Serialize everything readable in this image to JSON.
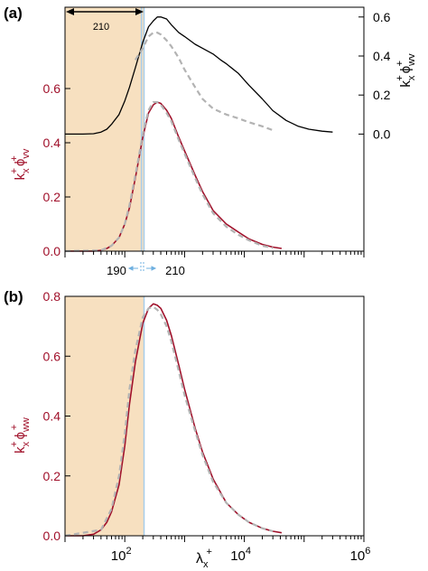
{
  "colors": {
    "red": "#a0102a",
    "black": "#000000",
    "gray": "#b3b3b3",
    "shade": "#f7e0c0",
    "blue": "#a8cdea"
  },
  "chart_data": [
    {
      "panel_label": "(a)",
      "type": "line",
      "xscale": "log",
      "xlim": [
        10,
        1000000
      ],
      "x_tick_labels": [],
      "left_axis": {
        "label_main": "k",
        "label_sup": "+",
        "label_sub": "x",
        "label_phi": "ϕ",
        "label_phi_sup": "+",
        "label_phi_sub": "vv",
        "ylim": [
          0,
          0.9
        ],
        "ticks": [
          0.0,
          0.2,
          0.4,
          0.6
        ],
        "tick_labels": [
          "0.0",
          "0.2",
          "0.4",
          "0.6"
        ]
      },
      "right_axis": {
        "label_main": "k",
        "label_sup": "+",
        "label_sub": "x",
        "label_phi": "ϕ",
        "label_phi_sup": "+",
        "label_phi_sub": "wv",
        "ylim": [
          -0.6,
          0.65
        ],
        "ticks": [
          0.0,
          0.2,
          0.4,
          0.6
        ],
        "tick_labels": [
          "0.0",
          "0.2",
          "0.4",
          "0.6"
        ]
      },
      "shaded_region": {
        "x": [
          10,
          210
        ]
      },
      "vertical_lines": [
        190,
        210
      ],
      "annotations": {
        "arrow_label": "210",
        "bottom_left": "190",
        "bottom_right": "210"
      },
      "series": [
        {
          "axis": "left",
          "style": "solid-red",
          "x": [
            10,
            20,
            30,
            40,
            50,
            60,
            80,
            100,
            120,
            150,
            200,
            250,
            300,
            350,
            400,
            500,
            600,
            800,
            1000,
            1500,
            2000,
            3000,
            5000,
            8000,
            12000,
            20000,
            30000,
            42000
          ],
          "y": [
            0.0,
            0.0,
            0.0,
            0.003,
            0.01,
            0.02,
            0.05,
            0.1,
            0.16,
            0.27,
            0.42,
            0.51,
            0.54,
            0.55,
            0.545,
            0.52,
            0.49,
            0.42,
            0.37,
            0.28,
            0.22,
            0.15,
            0.1,
            0.07,
            0.045,
            0.025,
            0.015,
            0.01
          ]
        },
        {
          "axis": "left",
          "style": "dashed-gray",
          "x": [
            10,
            40,
            60,
            80,
            100,
            120,
            150,
            200,
            250,
            300,
            350,
            400,
            500,
            600,
            800,
            1000,
            1500,
            2000,
            3000,
            5000,
            8000,
            12000,
            20000,
            30000
          ],
          "y": [
            0.0,
            0.003,
            0.02,
            0.05,
            0.1,
            0.17,
            0.28,
            0.43,
            0.52,
            0.55,
            0.55,
            0.54,
            0.51,
            0.48,
            0.41,
            0.36,
            0.27,
            0.21,
            0.14,
            0.09,
            0.06,
            0.04,
            0.02,
            0.012
          ]
        },
        {
          "axis": "right",
          "style": "solid-black",
          "x": [
            10,
            20,
            30,
            40,
            50,
            60,
            80,
            100,
            120,
            150,
            200,
            250,
            300,
            350,
            400,
            500,
            600,
            800,
            1000,
            1500,
            2000,
            3000,
            4000,
            5000,
            8000,
            12000,
            20000,
            30000,
            50000,
            80000,
            120000,
            200000,
            300000
          ],
          "y": [
            0.0,
            0.0,
            0.002,
            0.01,
            0.025,
            0.05,
            0.1,
            0.17,
            0.24,
            0.34,
            0.47,
            0.55,
            0.58,
            0.6,
            0.6,
            0.59,
            0.56,
            0.52,
            0.5,
            0.46,
            0.44,
            0.41,
            0.38,
            0.36,
            0.31,
            0.25,
            0.18,
            0.12,
            0.07,
            0.04,
            0.025,
            0.015,
            0.01
          ]
        },
        {
          "axis": "right",
          "style": "dashed-gray",
          "x": [
            150,
            200,
            250,
            300,
            350,
            400,
            500,
            600,
            800,
            1000,
            1500,
            2000,
            3000,
            5000,
            8000,
            12000,
            20000,
            30000
          ],
          "y": [
            0.38,
            0.44,
            0.5,
            0.52,
            0.52,
            0.51,
            0.48,
            0.45,
            0.39,
            0.33,
            0.24,
            0.18,
            0.13,
            0.1,
            0.08,
            0.06,
            0.04,
            0.02
          ]
        }
      ]
    },
    {
      "panel_label": "(b)",
      "type": "line",
      "xscale": "log",
      "xlim": [
        10,
        1000000
      ],
      "x_ticks": [
        100,
        10000,
        1000000
      ],
      "x_tick_bases": [
        "10",
        "10",
        "10"
      ],
      "x_tick_exps": [
        "2",
        "4",
        "6"
      ],
      "xlabel": {
        "main": "λ",
        "sub": "x",
        "sup": "+"
      },
      "left_axis": {
        "label_main": "k",
        "label_sup": "+",
        "label_sub": "x",
        "label_phi": "ϕ",
        "label_phi_sup": "+",
        "label_phi_sub": "ww",
        "ylim": [
          0,
          0.8
        ],
        "ticks": [
          0.0,
          0.2,
          0.4,
          0.6,
          0.8
        ],
        "tick_labels": [
          "0.0",
          "0.2",
          "0.4",
          "0.6",
          "0.8"
        ]
      },
      "shaded_region": {
        "x": [
          10,
          210
        ]
      },
      "vertical_lines": [
        210
      ],
      "series": [
        {
          "axis": "left",
          "style": "solid-red",
          "x": [
            10,
            20,
            30,
            40,
            50,
            60,
            80,
            100,
            120,
            150,
            200,
            250,
            300,
            350,
            400,
            500,
            600,
            800,
            1000,
            1500,
            2000,
            3000,
            5000,
            8000,
            12000,
            20000,
            30000,
            42000
          ],
          "y": [
            0.0,
            0.0,
            0.005,
            0.02,
            0.045,
            0.08,
            0.17,
            0.3,
            0.44,
            0.58,
            0.71,
            0.76,
            0.775,
            0.77,
            0.76,
            0.72,
            0.67,
            0.57,
            0.49,
            0.36,
            0.28,
            0.19,
            0.11,
            0.07,
            0.045,
            0.025,
            0.015,
            0.01
          ]
        },
        {
          "axis": "left",
          "style": "dashed-gray",
          "x": [
            10,
            40,
            60,
            80,
            100,
            120,
            150,
            200,
            250,
            300,
            350,
            400,
            500,
            600,
            800,
            1000,
            1500,
            2000,
            3000,
            5000,
            8000,
            12000,
            20000,
            30000
          ],
          "y": [
            0.0,
            0.02,
            0.09,
            0.2,
            0.34,
            0.49,
            0.62,
            0.73,
            0.76,
            0.765,
            0.755,
            0.74,
            0.7,
            0.65,
            0.55,
            0.47,
            0.35,
            0.27,
            0.18,
            0.11,
            0.07,
            0.045,
            0.025,
            0.015
          ]
        }
      ]
    }
  ]
}
